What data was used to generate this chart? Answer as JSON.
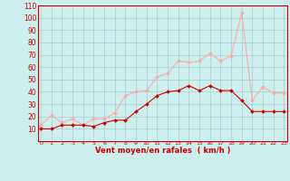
{
  "hours": [
    0,
    1,
    2,
    3,
    4,
    5,
    6,
    7,
    8,
    9,
    10,
    11,
    12,
    13,
    14,
    15,
    16,
    17,
    18,
    19,
    20,
    21,
    22,
    23
  ],
  "wind_mean": [
    10,
    10,
    13,
    13,
    13,
    12,
    15,
    17,
    17,
    24,
    30,
    37,
    40,
    41,
    45,
    41,
    45,
    41,
    41,
    33,
    24,
    24,
    24,
    24
  ],
  "wind_gust": [
    13,
    21,
    15,
    18,
    13,
    18,
    18,
    23,
    37,
    40,
    41,
    52,
    55,
    65,
    64,
    65,
    71,
    65,
    69,
    104,
    33,
    44,
    39,
    39
  ],
  "line_color_mean": "#cc0000",
  "line_color_gust": "#ffaaaa",
  "marker": "D",
  "marker_size": 2,
  "bg_color": "#cceeed",
  "grid_color": "#aacccc",
  "xlabel": "Vent moyen/en rafales  ( km/h )",
  "xlabel_color": "#cc0000",
  "tick_color": "#cc0000",
  "ylim": [
    0,
    110
  ],
  "yticks": [
    0,
    10,
    20,
    30,
    40,
    50,
    60,
    70,
    80,
    90,
    100,
    110
  ],
  "ytick_labels": [
    "",
    "10",
    "20",
    "30",
    "40",
    "50",
    "60",
    "70",
    "80",
    "90",
    "100",
    "110"
  ]
}
